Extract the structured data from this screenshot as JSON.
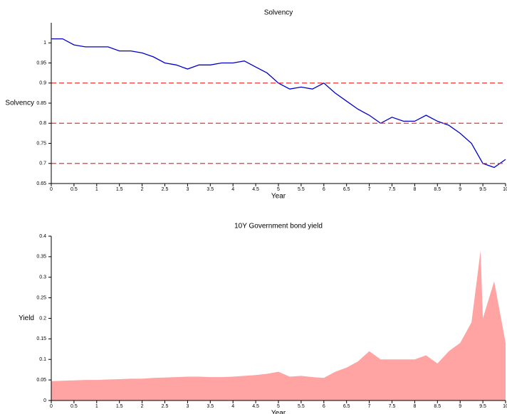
{
  "chart_data": [
    {
      "type": "line",
      "title": "Solvency",
      "xlabel": "Year",
      "ylabel": "Solvency",
      "x": [
        0,
        0.25,
        0.5,
        0.75,
        1,
        1.25,
        1.5,
        1.75,
        2,
        2.25,
        2.5,
        2.75,
        3,
        3.25,
        3.5,
        3.75,
        4,
        4.25,
        4.5,
        4.75,
        5,
        5.25,
        5.5,
        5.75,
        6,
        6.25,
        6.5,
        6.75,
        7,
        7.25,
        7.5,
        7.75,
        8,
        8.25,
        8.5,
        8.75,
        9,
        9.25,
        9.5,
        9.75,
        10
      ],
      "series": [
        {
          "color": "#0000cc",
          "values": [
            1.01,
            1.01,
            0.995,
            0.99,
            0.99,
            0.99,
            0.98,
            0.98,
            0.975,
            0.965,
            0.95,
            0.945,
            0.935,
            0.945,
            0.945,
            0.95,
            0.95,
            0.955,
            0.94,
            0.925,
            0.9,
            0.885,
            0.89,
            0.885,
            0.9,
            0.875,
            0.855,
            0.835,
            0.82,
            0.8,
            0.815,
            0.805,
            0.805,
            0.82,
            0.805,
            0.795,
            0.775,
            0.75,
            0.7,
            0.69,
            0.71
          ]
        }
      ],
      "hlines": [
        0.7,
        0.8,
        0.9
      ],
      "hline_color": "#ee3333",
      "xlim": [
        0,
        10
      ],
      "xticks": [
        0,
        0.5,
        1,
        1.5,
        2,
        2.5,
        3,
        3.5,
        4,
        4.5,
        5,
        5.5,
        6,
        6.5,
        7,
        7.5,
        8,
        8.5,
        9,
        9.5,
        10
      ],
      "ylim": [
        0.65,
        1.05
      ],
      "yticks": [
        0.65,
        0.7,
        0.75,
        0.8,
        0.85,
        0.9,
        0.95,
        1
      ]
    },
    {
      "type": "area",
      "title": "10Y Government bond yield",
      "xlabel": "Year",
      "ylabel": "Yield",
      "x": [
        0,
        0.25,
        0.5,
        0.75,
        1,
        1.25,
        1.5,
        1.75,
        2,
        2.25,
        2.5,
        2.75,
        3,
        3.25,
        3.5,
        3.75,
        4,
        4.25,
        4.5,
        4.75,
        5,
        5.25,
        5.5,
        5.75,
        6,
        6.25,
        6.5,
        6.75,
        7,
        7.25,
        7.5,
        7.75,
        8,
        8.25,
        8.5,
        8.75,
        9,
        9.25,
        9.45,
        9.5,
        9.75,
        9.9,
        10
      ],
      "series": [
        {
          "color": "#ffa3a3",
          "values": [
            0.047,
            0.048,
            0.049,
            0.05,
            0.05,
            0.051,
            0.052,
            0.053,
            0.053,
            0.055,
            0.056,
            0.057,
            0.058,
            0.058,
            0.057,
            0.057,
            0.058,
            0.06,
            0.062,
            0.065,
            0.07,
            0.058,
            0.06,
            0.057,
            0.055,
            0.07,
            0.08,
            0.095,
            0.12,
            0.1,
            0.1,
            0.1,
            0.1,
            0.11,
            0.09,
            0.12,
            0.14,
            0.19,
            0.365,
            0.2,
            0.29,
            0.2,
            0.14
          ]
        }
      ],
      "xlim": [
        0,
        10
      ],
      "xticks": [
        0,
        0.5,
        1,
        1.5,
        2,
        2.5,
        3,
        3.5,
        4,
        4.5,
        5,
        5.5,
        6,
        6.5,
        7,
        7.5,
        8,
        8.5,
        9,
        9.5,
        10
      ],
      "ylim": [
        0,
        0.4
      ],
      "yticks": [
        0,
        0.05,
        0.1,
        0.15,
        0.2,
        0.25,
        0.3,
        0.35,
        0.4
      ]
    }
  ]
}
